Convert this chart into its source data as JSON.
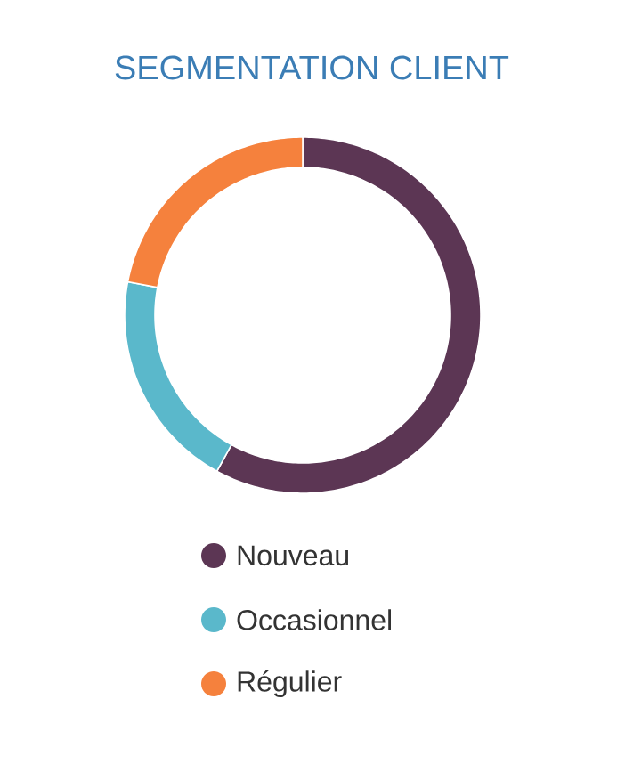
{
  "chart_data": {
    "type": "donut",
    "title": "SEGMENTATION CLIENT",
    "categories": [
      "Nouveau",
      "Occasionnel",
      "Régulier"
    ],
    "values": [
      58,
      20,
      22
    ],
    "colors": [
      "#5c3654",
      "#5ab8cb",
      "#f5813d"
    ],
    "legend": "bottom"
  }
}
